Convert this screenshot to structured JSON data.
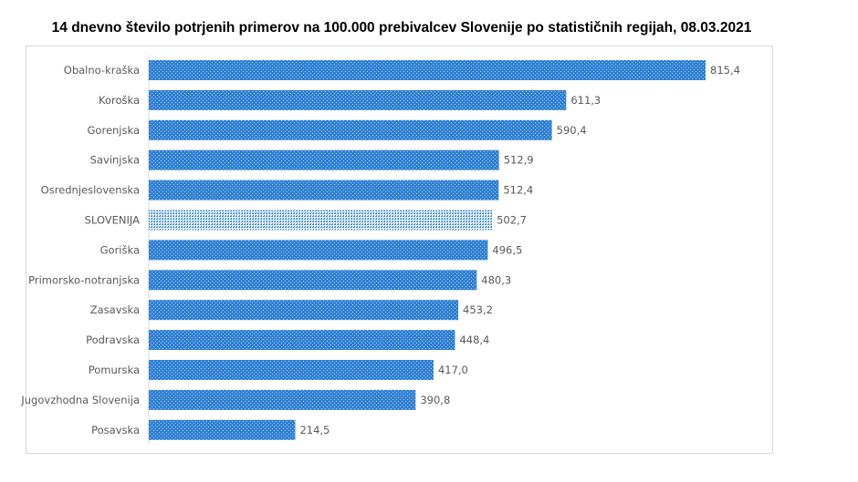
{
  "chart_data": {
    "type": "bar",
    "orientation": "horizontal",
    "title": "14 dnevno število potrjenih primerov na 100.000 prebivalcev Slovenije po statističnih regijah, 08.03.2021",
    "categories": [
      "Obalno-kraška",
      "Koroška",
      "Gorenjska",
      "Savinjska",
      "Osrednjeslovenska",
      "SLOVENIJA",
      "Goriška",
      "Primorsko-notranjska",
      "Zasavska",
      "Podravska",
      "Pomurska",
      "Jugovzhodna Slovenija",
      "Posavska"
    ],
    "values": [
      815.4,
      611.3,
      590.4,
      512.9,
      512.4,
      502.7,
      496.5,
      480.3,
      453.2,
      448.4,
      417.0,
      390.8,
      214.5
    ],
    "value_labels": [
      "815,4",
      "611,3",
      "590,4",
      "512,9",
      "512,4",
      "502,7",
      "496,5",
      "480,3",
      "453,2",
      "448,4",
      "417,0",
      "390,8",
      "214,5"
    ],
    "highlighted_category": "SLOVENIJA",
    "xlim": [
      0,
      815.4
    ],
    "grid": false,
    "legend": "none",
    "colors": {
      "bar": "#3a87d6",
      "highlight": "#5aa2e0"
    }
  }
}
